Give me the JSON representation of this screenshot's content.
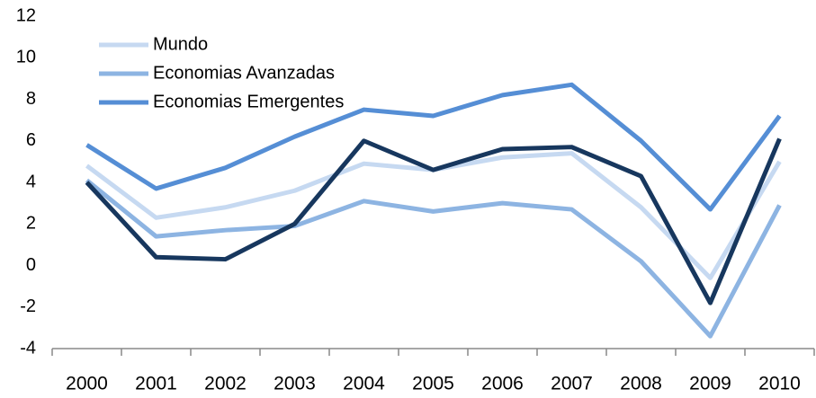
{
  "chart_data": {
    "type": "line",
    "categories": [
      "2000",
      "2001",
      "2002",
      "2003",
      "2004",
      "2005",
      "2006",
      "2007",
      "2008",
      "2009",
      "2010"
    ],
    "series": [
      {
        "name": "Mundo",
        "color": "#c6d9f1",
        "values": [
          4.8,
          2.3,
          2.8,
          3.6,
          4.9,
          4.6,
          5.2,
          5.4,
          2.8,
          -0.6,
          5.0
        ]
      },
      {
        "name": "Economias Avanzadas",
        "color": "#8db4e2",
        "values": [
          4.1,
          1.4,
          1.7,
          1.9,
          3.1,
          2.6,
          3.0,
          2.7,
          0.2,
          -3.4,
          2.9
        ]
      },
      {
        "name": "Economias Emergentes",
        "color": "#558ed5",
        "values": [
          5.8,
          3.7,
          4.7,
          6.2,
          7.5,
          7.2,
          8.2,
          8.7,
          6.0,
          2.7,
          7.2
        ]
      },
      {
        "color": "#17375e",
        "values": [
          4.0,
          0.4,
          0.3,
          2.0,
          6.0,
          4.6,
          5.6,
          5.7,
          4.3,
          -1.8,
          6.1
        ]
      }
    ],
    "ylim": [
      -4,
      12
    ],
    "yticks": [
      -4,
      -2,
      0,
      2,
      4,
      6,
      8,
      10,
      12
    ],
    "grid": false,
    "legend": "upper left"
  }
}
